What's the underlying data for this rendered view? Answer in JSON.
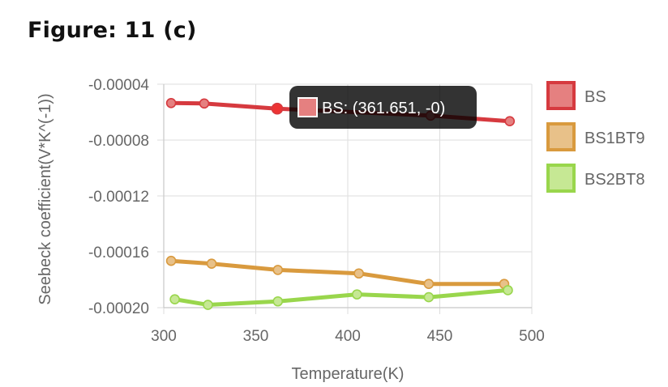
{
  "figure_title": "Figure: 11 (c)",
  "chart_data": {
    "type": "line",
    "title": "",
    "xlabel": "Temperature(K)",
    "ylabel": "Seebeck coefficient(V*K^(-1))",
    "xlim": [
      300,
      500
    ],
    "ylim": [
      -0.0002,
      -4e-05
    ],
    "x_ticks": [
      300,
      350,
      400,
      450,
      500
    ],
    "y_ticks": [
      -4e-05,
      -8e-05,
      -0.00012,
      -0.00016,
      -0.0002
    ],
    "x_tick_labels": [
      "300",
      "350",
      "400",
      "450",
      "500"
    ],
    "y_tick_labels": [
      "-0.00004",
      "-0.00008",
      "-0.00012",
      "-0.00016",
      "-0.00020"
    ],
    "grid": true,
    "legend_position": "right",
    "series": [
      {
        "name": "BS",
        "color": "#d63a3f",
        "fill": "#e58080",
        "points": [
          [
            304,
            -5.35e-05
          ],
          [
            322,
            -5.38e-05
          ],
          [
            361.651,
            -5.75e-05
          ],
          [
            445,
            -6.25e-05
          ],
          [
            488,
            -6.65e-05
          ]
        ]
      },
      {
        "name": "BS1BT9",
        "color": "#d99a3e",
        "fill": "#e8c189",
        "points": [
          [
            304,
            -0.0001665
          ],
          [
            326,
            -0.0001685
          ],
          [
            362,
            -0.000173
          ],
          [
            406,
            -0.0001755
          ],
          [
            444,
            -0.000183
          ],
          [
            485,
            -0.000183
          ]
        ]
      },
      {
        "name": "BS2BT8",
        "color": "#99d64c",
        "fill": "#c6e894",
        "points": [
          [
            306,
            -0.000194
          ],
          [
            324,
            -0.000198
          ],
          [
            362,
            -0.0001955
          ],
          [
            405,
            -0.0001905
          ],
          [
            444,
            -0.0001925
          ],
          [
            487,
            -0.0001875
          ]
        ]
      }
    ],
    "tooltip": {
      "series_index": 0,
      "point_index": 2,
      "text": "BS: (361.651, -0)"
    }
  }
}
